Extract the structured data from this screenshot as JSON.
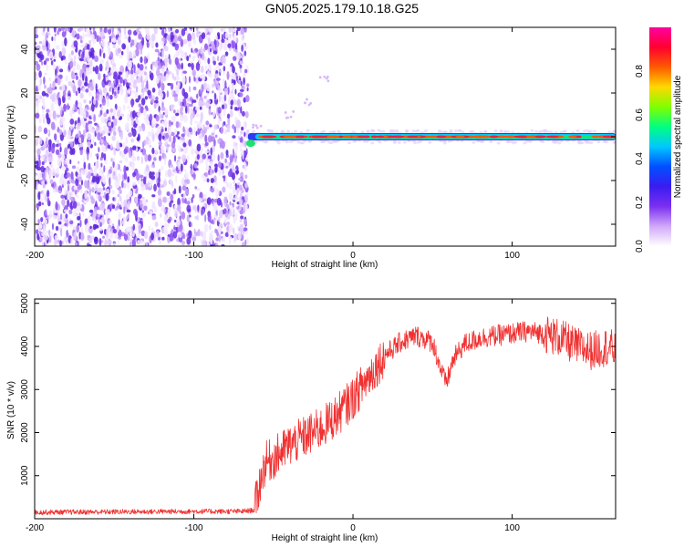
{
  "title": "GN05.2025.179.10.18.G25",
  "chart_data": [
    {
      "type": "heatmap",
      "xlabel": "Height of straight line (km)",
      "ylabel": "Frequency (Hz)",
      "xlim": [
        -200,
        165
      ],
      "ylim": [
        -50,
        50
      ],
      "xticks": [
        -200,
        -100,
        0,
        100
      ],
      "yticks": [
        -40,
        -20,
        0,
        20,
        40
      ],
      "grid": false,
      "noise_region_x": [
        -200,
        -66
      ],
      "signal": {
        "x_start": -66,
        "x_end": 165,
        "freq_hz": 0,
        "onset_freq_hz": -3,
        "ghost_branch": [
          [
            -60,
            4
          ],
          [
            -40,
            10
          ],
          [
            -28,
            16
          ],
          [
            -18,
            26
          ]
        ]
      },
      "colorbar": {
        "label": "Normalized spectral amplitude",
        "range": [
          0,
          1
        ],
        "ticks": [
          "0.0",
          "0.2",
          "0.4",
          "0.6",
          "0.8"
        ],
        "tick_values": [
          0,
          0.2,
          0.4,
          0.6,
          0.8
        ],
        "colors": [
          "#ffffff",
          "#d0a8f8",
          "#7b2ff0",
          "#3a1cf0",
          "#0050ff",
          "#00c8ff",
          "#00ff80",
          "#80ff00",
          "#ffd800",
          "#ff5a00",
          "#ff0030",
          "#ff00a0"
        ]
      }
    },
    {
      "type": "line",
      "xlabel": "Height of straight line (km)",
      "ylabel": "SNR (10 * v/v)",
      "xlim": [
        -200,
        165
      ],
      "ylim": [
        0,
        5100
      ],
      "xticks": [
        -200,
        -100,
        0,
        100
      ],
      "yticks": [
        1000,
        2000,
        3000,
        4000,
        5000
      ],
      "grid": false,
      "color": "#f03030",
      "x": [
        -200,
        -150,
        -100,
        -70,
        -62,
        -58,
        -55,
        -50,
        -40,
        -30,
        -20,
        -10,
        0,
        10,
        20,
        30,
        40,
        50,
        55,
        58,
        60,
        63,
        70,
        80,
        90,
        100,
        110,
        120,
        130,
        140,
        150,
        160,
        165
      ],
      "y": [
        150,
        160,
        170,
        170,
        200,
        900,
        1300,
        1400,
        1700,
        1900,
        2100,
        2400,
        2800,
        3300,
        3800,
        4100,
        4250,
        4100,
        3500,
        3150,
        3300,
        3700,
        4050,
        4200,
        4250,
        4300,
        4350,
        4300,
        4200,
        4000,
        3900,
        4000,
        3900
      ]
    }
  ]
}
